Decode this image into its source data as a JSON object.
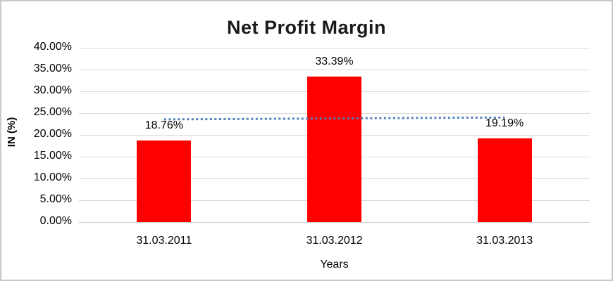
{
  "window": {
    "background_color": "#ffffff",
    "border_color": "#c9c9c9"
  },
  "chart_data": {
    "type": "bar",
    "title": "Net Profit Margin",
    "xlabel": "Years",
    "ylabel": "IN (%)",
    "categories": [
      "31.03.2011",
      "31.03.2012",
      "31.03.2013"
    ],
    "values": [
      18.76,
      33.39,
      19.19
    ],
    "data_labels": [
      "18.76%",
      "33.39%",
      "19.19%"
    ],
    "ytick_labels": [
      "40.00%",
      "35.00%",
      "30.00%",
      "25.00%",
      "20.00%",
      "15.00%",
      "10.00%",
      "5.00%",
      "0.00%"
    ],
    "ylim": [
      0,
      40
    ],
    "ytick_step": 5,
    "grid": true,
    "legend": "none",
    "bar_color": "#ff0000",
    "gridline_color": "#d9d9d9",
    "trendline": {
      "style": "dotted",
      "color": "#4f81bd",
      "start_value": 23.56,
      "end_value": 23.99
    }
  }
}
